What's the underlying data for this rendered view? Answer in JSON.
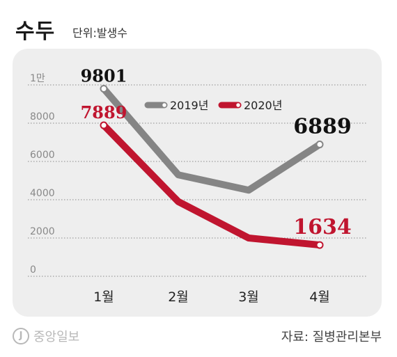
{
  "header": {
    "title": "수두",
    "unit": "단위:발생수"
  },
  "footer": {
    "logo": "중앙일보",
    "source": "자료: 질병관리본부"
  },
  "colors": {
    "series_2019": "#858585",
    "series_2020": "#c0152f",
    "grid": "#8a8a8a",
    "panel": "#eeeeee"
  },
  "chart_data": {
    "type": "line",
    "categories": [
      "1월",
      "2월",
      "3월",
      "4월"
    ],
    "ylim": [
      0,
      10000
    ],
    "y_ticks": [
      {
        "value": 10000,
        "label": "1만"
      },
      {
        "value": 8000,
        "label": "8000"
      },
      {
        "value": 6000,
        "label": "6000"
      },
      {
        "value": 4000,
        "label": "4000"
      },
      {
        "value": 2000,
        "label": "2000"
      },
      {
        "value": 0,
        "label": "0"
      }
    ],
    "series": [
      {
        "name": "2019년",
        "values": [
          9801,
          5300,
          4500,
          6889
        ],
        "labels": [
          "9801",
          "",
          "",
          "6889"
        ]
      },
      {
        "name": "2020년",
        "values": [
          7889,
          3900,
          2000,
          1634
        ],
        "labels": [
          "7889",
          "",
          "",
          "1634"
        ]
      }
    ],
    "grid": true,
    "legend_position": "top-center"
  }
}
